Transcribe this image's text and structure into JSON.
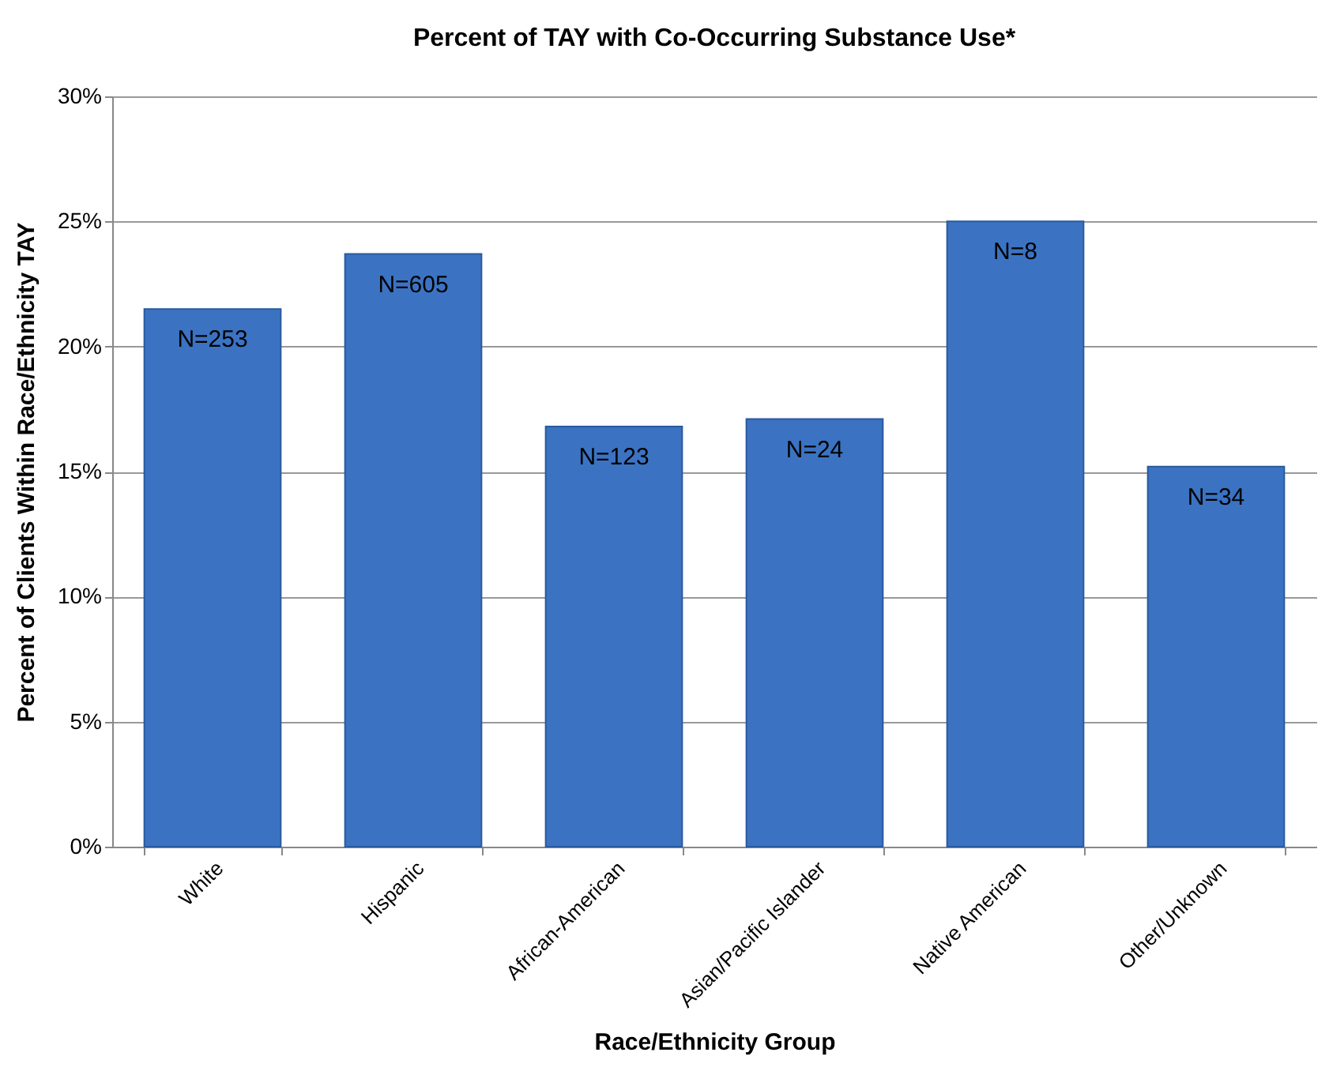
{
  "chart_data": {
    "type": "bar",
    "title": "Percent of TAY with Co-Occurring Substance Use*",
    "xlabel": "Race/Ethnicity Group",
    "ylabel": "Percent of Clients Within Race/Ethnicity TAY",
    "categories": [
      "White",
      "Hispanic",
      "African-American",
      "Asian/Pacific Islander",
      "Native American",
      "Other/Unknown"
    ],
    "values": [
      21.5,
      23.7,
      16.8,
      17.1,
      25.0,
      15.2
    ],
    "annotations": [
      {
        "text": "N=253",
        "x": "White",
        "y": 21.5
      },
      {
        "text": "N=605",
        "x": "Hispanic",
        "y": 23.7
      },
      {
        "text": "N=123",
        "x": "African-American",
        "y": 16.8
      },
      {
        "text": "N=24",
        "x": "Asian/Pacific Islander",
        "y": 17.1
      },
      {
        "text": "N=8",
        "x": "Native American",
        "y": 25.0
      },
      {
        "text": "N=34",
        "x": "Other/Unknown",
        "y": 15.2
      }
    ],
    "color": "#3b73c2",
    "ylim": [
      0,
      30
    ],
    "yticks": [
      {
        "value": 0,
        "label": "0%"
      },
      {
        "value": 5,
        "label": "5%"
      },
      {
        "value": 10,
        "label": "10%"
      },
      {
        "value": 15,
        "label": "15%"
      },
      {
        "value": 20,
        "label": "20%"
      },
      {
        "value": 25,
        "label": "25%"
      },
      {
        "value": 30,
        "label": "30%"
      }
    ],
    "grid": "y"
  }
}
